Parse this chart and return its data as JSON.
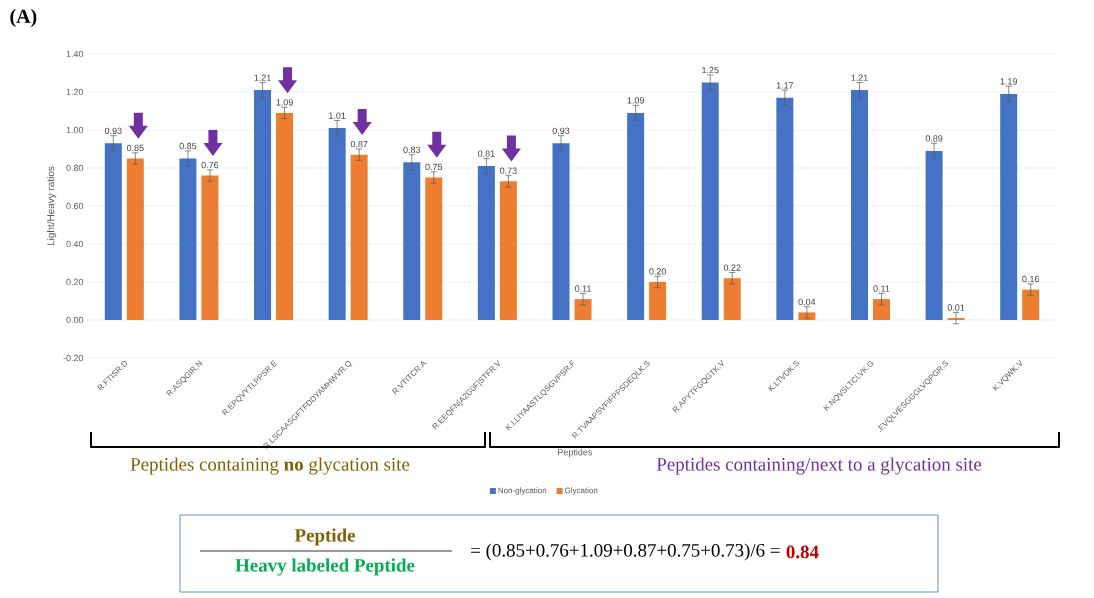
{
  "chart_data": {
    "type": "bar",
    "title": "(A)",
    "xlabel": "Peptides",
    "ylabel": "Light/Heavy ratios",
    "categories": [
      "R.FTISR.D",
      "R.ASQGIR.N",
      "R.EPQVYTLPPSR.E",
      "R.LSCAASGFTFDDYAMHWVR.Q",
      "R.VTITCR.A",
      "R.EEQFN[A2G0F]STFR.V",
      "K.LLIYAASTLQSGVPSR.F",
      "R.TVAAPSVFIFPPSDEQLK.S",
      "R.APYTFGQGTK.V",
      "K.LTVDK.S",
      "K.NQVSLTCLVK.G",
      ".EVQLVESGGGLVQPGR.S",
      "K.VQWK.V"
    ],
    "series": [
      {
        "name": "Non-glycation",
        "color": "#4472c4",
        "values": [
          0.93,
          0.85,
          1.21,
          1.01,
          0.83,
          0.81,
          0.93,
          1.09,
          1.25,
          1.17,
          1.21,
          0.89,
          1.19
        ],
        "errors": [
          0.04,
          0.04,
          0.04,
          0.04,
          0.04,
          0.04,
          0.04,
          0.04,
          0.04,
          0.04,
          0.04,
          0.04,
          0.04
        ],
        "value_labels": [
          "0.93",
          "0.85",
          "1.21",
          "1.01",
          "0.83",
          "0.81",
          "0.93",
          "1.09",
          "1.25",
          "1.17",
          "1.21",
          "0.89",
          "1.19"
        ]
      },
      {
        "name": "Glycation",
        "color": "#ed7d31",
        "values": [
          0.85,
          0.76,
          1.09,
          0.87,
          0.75,
          0.73,
          0.11,
          0.2,
          0.22,
          0.04,
          0.11,
          0.01,
          0.16
        ],
        "errors": [
          0.03,
          0.03,
          0.03,
          0.03,
          0.03,
          0.03,
          0.03,
          0.03,
          0.03,
          0.03,
          0.03,
          0.03,
          0.03
        ],
        "value_labels": [
          "0.85",
          "0.76",
          "1.09",
          "0.87",
          "0.75",
          "0.73",
          "0.11",
          "0.20",
          "0.22",
          "0.04",
          "0.11",
          "0.01",
          "0.16"
        ]
      }
    ],
    "ylim": [
      -0.2,
      1.4
    ],
    "yticks": [
      {
        "value": -0.2,
        "label": "-0.20"
      },
      {
        "value": 0,
        "label": "0.00"
      },
      {
        "value": 0.2,
        "label": "0.20"
      },
      {
        "value": 0.4,
        "label": "0.40"
      },
      {
        "value": 0.6,
        "label": "0.60"
      },
      {
        "value": 0.8,
        "label": "0.80"
      },
      {
        "value": 1,
        "label": "1.00"
      },
      {
        "value": 1.2,
        "label": "1.20"
      },
      {
        "value": 1.4,
        "label": "1.40"
      }
    ],
    "grid": "y",
    "legend": "bottom",
    "annotations": [
      "Peptides containing **no** glycation site",
      "Peptides containing/next to a glycation site",
      "Peptide",
      "Heavy labeled Peptide",
      "= (0.85+0.76+1.09+0.87+0.75+0.73)/6 =",
      "0.84"
    ]
  }
}
